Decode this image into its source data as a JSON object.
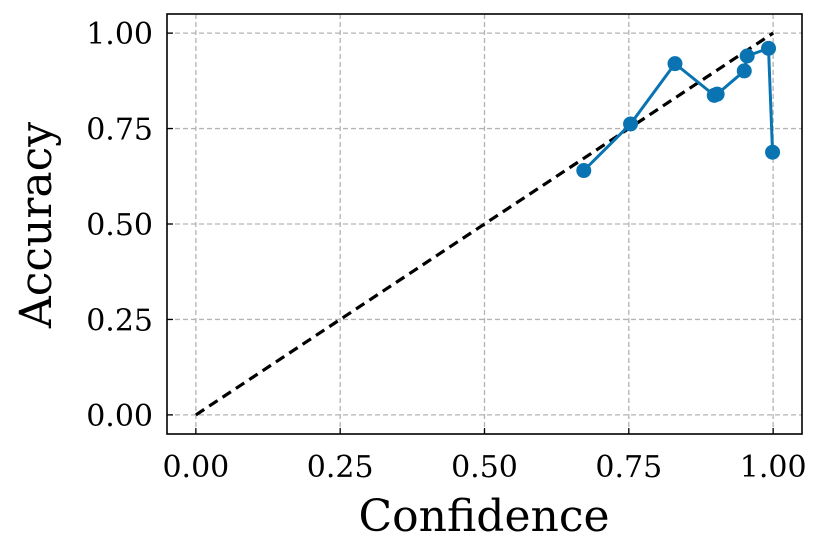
{
  "chart_data": {
    "type": "line",
    "title": "",
    "xlabel": "Confidence",
    "ylabel": "Accuracy",
    "xlim": [
      -0.05,
      1.05
    ],
    "ylim": [
      -0.05,
      1.05
    ],
    "x_ticks": [
      0.0,
      0.25,
      0.5,
      0.75,
      1.0
    ],
    "y_ticks": [
      0.0,
      0.25,
      0.5,
      0.75,
      1.0
    ],
    "x_tick_labels": [
      "0.00",
      "0.25",
      "0.50",
      "0.75",
      "1.00"
    ],
    "y_tick_labels": [
      "0.00",
      "0.25",
      "0.50",
      "0.75",
      "1.00"
    ],
    "grid": true,
    "reference_line": {
      "x": [
        0,
        1
      ],
      "y": [
        0,
        1
      ],
      "style": "dashed",
      "color": "#000000"
    },
    "series": [
      {
        "color": "#0a74b3",
        "x": [
          0.672,
          0.753,
          0.83,
          0.898,
          0.903,
          0.95,
          0.955,
          0.992,
          0.999
        ],
        "y": [
          0.64,
          0.762,
          0.92,
          0.837,
          0.84,
          0.901,
          0.94,
          0.96,
          0.688
        ]
      }
    ]
  }
}
